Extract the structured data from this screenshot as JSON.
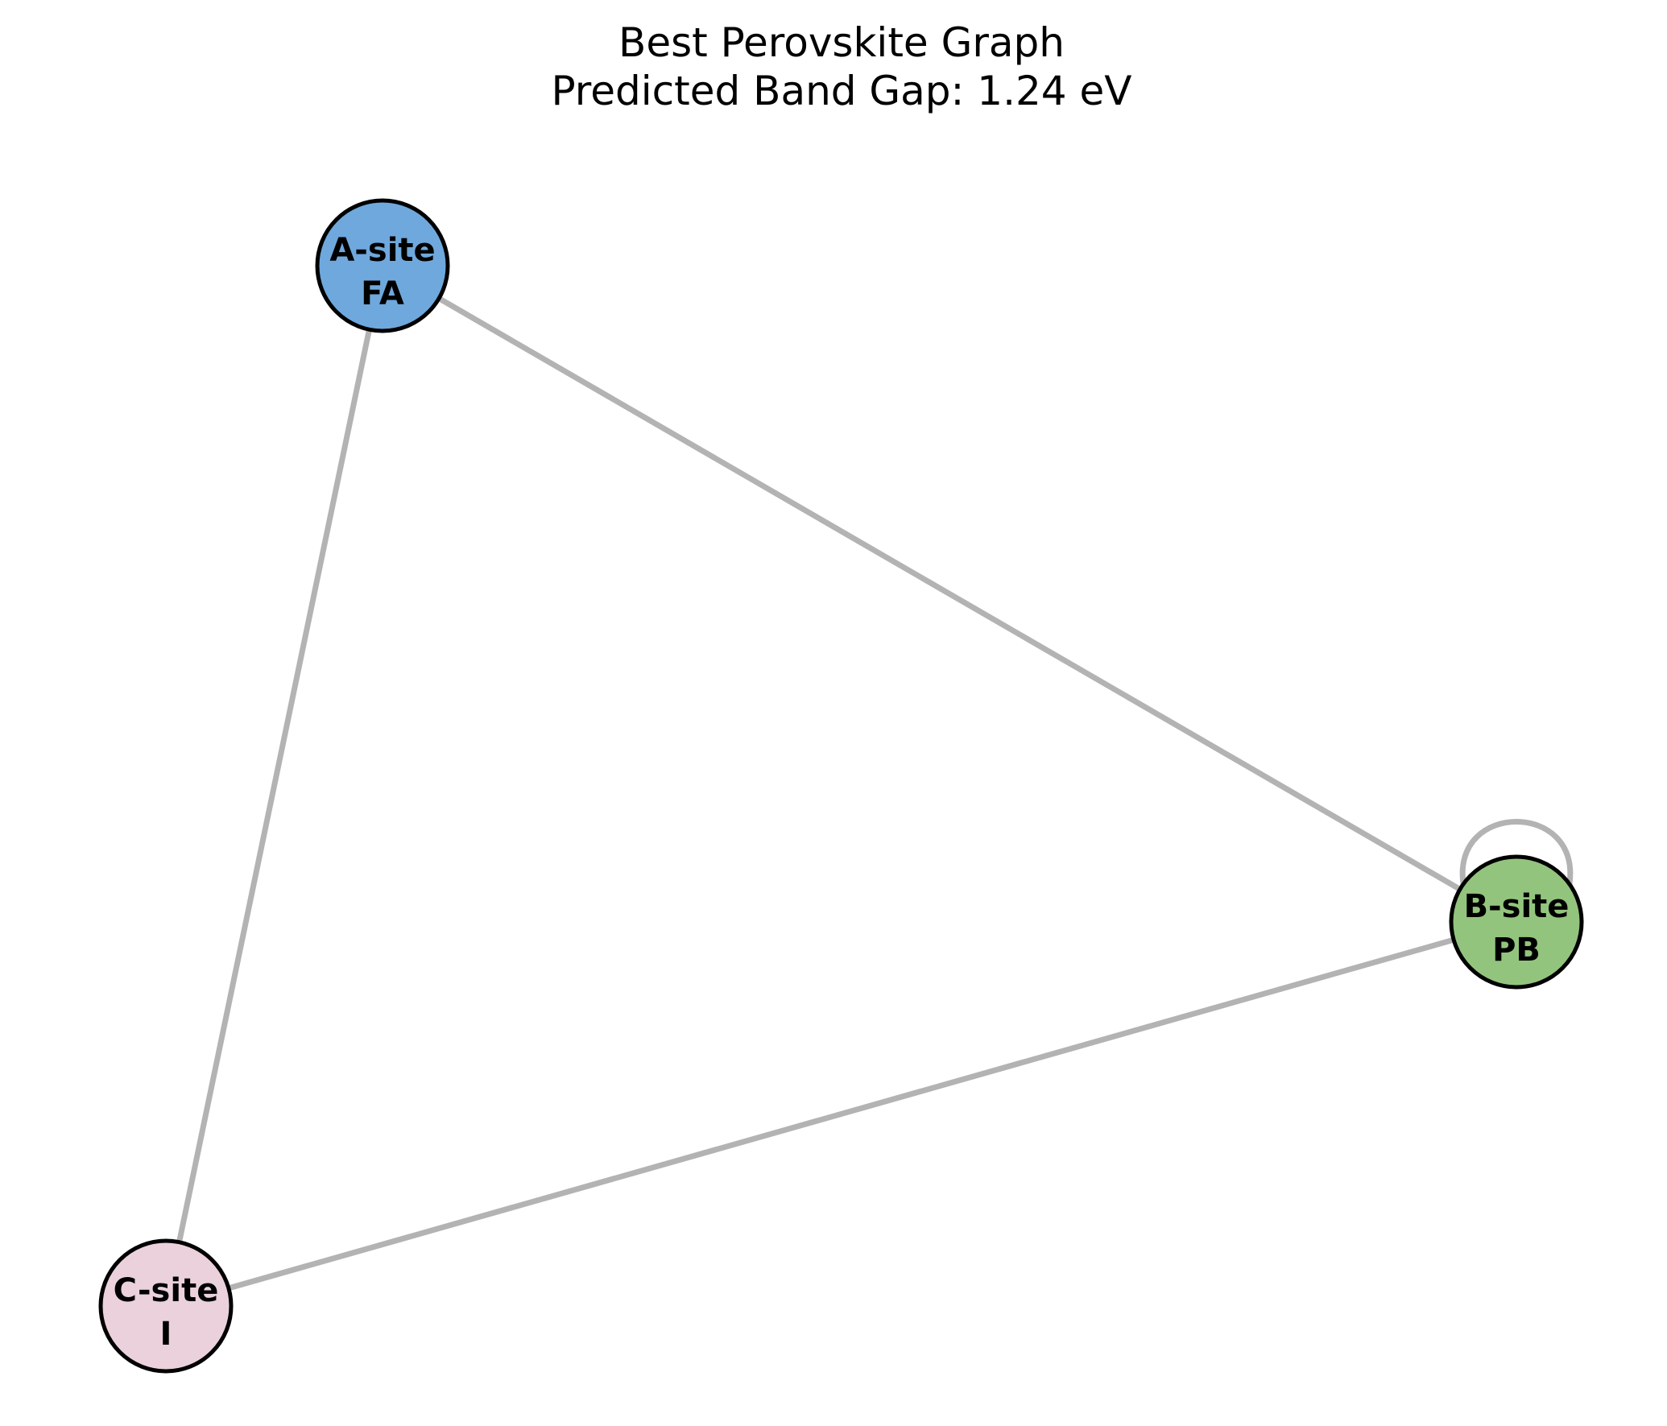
{
  "title": {
    "line1": "Best Perovskite Graph",
    "line2": "Predicted Band Gap: 1.24 eV"
  },
  "colors": {
    "edge": "#b3b3b3",
    "node_outline": "#000000",
    "a_site": "#6fa8dc",
    "b_site": "#93c47d",
    "c_site": "#ead1dc"
  },
  "nodes": [
    {
      "id": "a",
      "line1": "A-site",
      "line2": "FA",
      "icon": "node-circle"
    },
    {
      "id": "b",
      "line1": "B-site",
      "line2": "PB",
      "icon": "node-circle"
    },
    {
      "id": "c",
      "line1": "C-site",
      "line2": "I",
      "icon": "node-circle"
    }
  ],
  "edges": [
    {
      "from": "a",
      "to": "b"
    },
    {
      "from": "a",
      "to": "c"
    },
    {
      "from": "b",
      "to": "c"
    },
    {
      "from": "b",
      "to": "b"
    }
  ]
}
